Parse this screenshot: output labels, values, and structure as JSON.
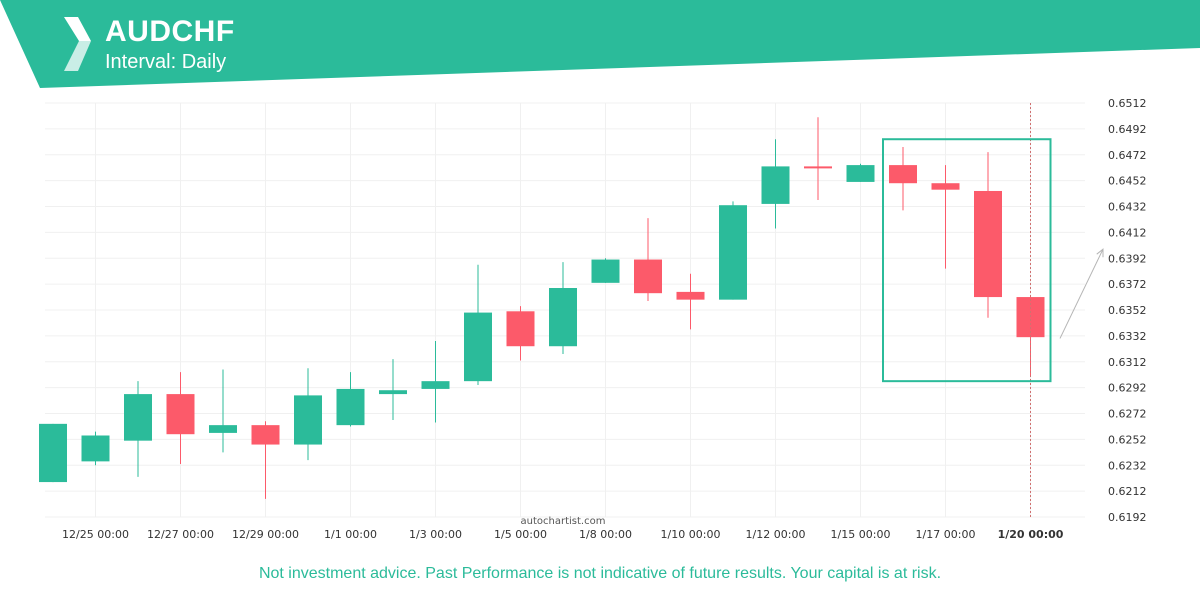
{
  "header": {
    "pair": "AUDCHF",
    "interval": "Interval: Daily",
    "brand_color": "#2bbb9a",
    "logo_icon": "autochartist-logo-icon"
  },
  "watermark": "autochartist.com",
  "disclaimer": "Not investment advice. Past Performance is not indicative of future results. Your capital is at risk.",
  "chart_data": {
    "type": "candlestick",
    "symbol": "AUDCHF",
    "interval": "Daily",
    "ylim": [
      0.6192,
      0.6512
    ],
    "y_ticks": [
      "0.6512",
      "0.6492",
      "0.6472",
      "0.6452",
      "0.6432",
      "0.6412",
      "0.6392",
      "0.6372",
      "0.6352",
      "0.6332",
      "0.6312",
      "0.6292",
      "0.6272",
      "0.6252",
      "0.6232",
      "0.6212",
      "0.6192"
    ],
    "x_ticks": [
      {
        "label": "12/25 00:00",
        "index": 1
      },
      {
        "label": "12/27 00:00",
        "index": 3
      },
      {
        "label": "12/29 00:00",
        "index": 5
      },
      {
        "label": "1/1 00:00",
        "index": 7
      },
      {
        "label": "1/3 00:00",
        "index": 9
      },
      {
        "label": "1/5 00:00",
        "index": 11
      },
      {
        "label": "1/8 00:00",
        "index": 13
      },
      {
        "label": "1/10 00:00",
        "index": 15
      },
      {
        "label": "1/12 00:00",
        "index": 17
      },
      {
        "label": "1/15 00:00",
        "index": 19
      },
      {
        "label": "1/17 00:00",
        "index": 21
      },
      {
        "label": "1/20 00:00",
        "index": 23,
        "current": true
      }
    ],
    "candles": [
      {
        "o": 0.6219,
        "h": 0.6264,
        "l": 0.6219,
        "c": 0.6264
      },
      {
        "o": 0.6235,
        "h": 0.6258,
        "l": 0.6232,
        "c": 0.6255
      },
      {
        "o": 0.6251,
        "h": 0.6297,
        "l": 0.6223,
        "c": 0.6287
      },
      {
        "o": 0.6287,
        "h": 0.6304,
        "l": 0.6233,
        "c": 0.6256
      },
      {
        "o": 0.6257,
        "h": 0.6306,
        "l": 0.6242,
        "c": 0.6263
      },
      {
        "o": 0.6263,
        "h": 0.6266,
        "l": 0.6206,
        "c": 0.6248
      },
      {
        "o": 0.6248,
        "h": 0.6307,
        "l": 0.6236,
        "c": 0.6286
      },
      {
        "o": 0.6263,
        "h": 0.6304,
        "l": 0.6262,
        "c": 0.6291
      },
      {
        "o": 0.6287,
        "h": 0.6314,
        "l": 0.6267,
        "c": 0.629
      },
      {
        "o": 0.6291,
        "h": 0.6328,
        "l": 0.6265,
        "c": 0.6297
      },
      {
        "o": 0.6297,
        "h": 0.6387,
        "l": 0.6294,
        "c": 0.635
      },
      {
        "o": 0.6351,
        "h": 0.6355,
        "l": 0.6313,
        "c": 0.6324
      },
      {
        "o": 0.6324,
        "h": 0.6389,
        "l": 0.6318,
        "c": 0.6369
      },
      {
        "o": 0.6373,
        "h": 0.6392,
        "l": 0.6373,
        "c": 0.6391
      },
      {
        "o": 0.6391,
        "h": 0.6423,
        "l": 0.6359,
        "c": 0.6365
      },
      {
        "o": 0.6366,
        "h": 0.638,
        "l": 0.6337,
        "c": 0.636
      },
      {
        "o": 0.636,
        "h": 0.6436,
        "l": 0.636,
        "c": 0.6433
      },
      {
        "o": 0.6434,
        "h": 0.6484,
        "l": 0.6415,
        "c": 0.6463
      },
      {
        "o": 0.6463,
        "h": 0.6501,
        "l": 0.6437,
        "c": 0.6462
      },
      {
        "o": 0.6451,
        "h": 0.6465,
        "l": 0.6451,
        "c": 0.6464
      },
      {
        "o": 0.6464,
        "h": 0.6478,
        "l": 0.6429,
        "c": 0.645
      },
      {
        "o": 0.645,
        "h": 0.6464,
        "l": 0.6384,
        "c": 0.6445
      },
      {
        "o": 0.6444,
        "h": 0.6474,
        "l": 0.6346,
        "c": 0.6362
      },
      {
        "o": 0.6362,
        "h": 0.6362,
        "l": 0.6301,
        "c": 0.6331
      }
    ],
    "pattern_box": {
      "from_index": 20,
      "to_index": 23,
      "low": 0.6297,
      "high": 0.6484
    },
    "projection_arrow": {
      "from": 0.633,
      "to": 0.6399
    },
    "colors": {
      "bullish": "#2bbb9a",
      "bearish": "#fc5a6a",
      "pattern_box": "#2bbb9a",
      "grid": "#f0f0f0",
      "current_time_line": "#d07070"
    }
  }
}
